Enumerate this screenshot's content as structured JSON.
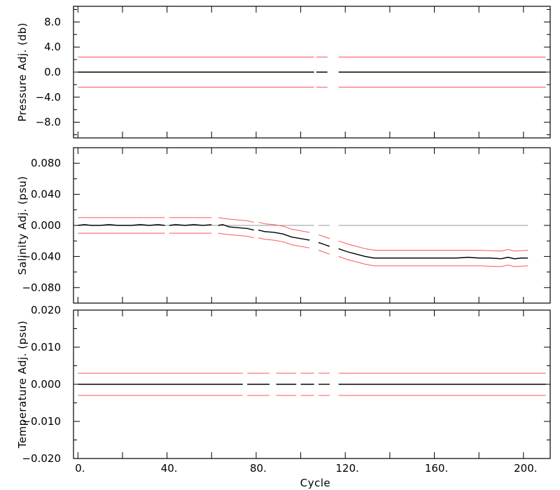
{
  "colors": {
    "data": "#000000",
    "error": "#ff5555",
    "zero": "#999999",
    "frame": "#000000"
  },
  "chart_data": [
    {
      "type": "line",
      "ylabel": "Pressure Adj. (db)",
      "ylim": [
        -10.5,
        10.5
      ],
      "yticks": [
        -8,
        -4,
        0,
        4,
        8
      ],
      "ytick_labels": [
        "−8.0",
        "−4.0",
        "0.0",
        "4.0",
        "8.0"
      ],
      "series": [
        {
          "role": "data",
          "segments": [
            [
              [
                0,
                0
              ],
              [
                106,
                0
              ]
            ],
            [
              [
                107,
                0
              ],
              [
                112,
                0
              ]
            ],
            [
              [
                117,
                0
              ],
              [
                210,
                0
              ]
            ]
          ]
        },
        {
          "role": "upper-error",
          "segments": [
            [
              [
                0,
                2.4
              ],
              [
                106,
                2.4
              ]
            ],
            [
              [
                107,
                2.4
              ],
              [
                112,
                2.4
              ]
            ],
            [
              [
                117,
                2.4
              ],
              [
                210,
                2.4
              ]
            ]
          ]
        },
        {
          "role": "lower-error",
          "segments": [
            [
              [
                0,
                -2.4
              ],
              [
                106,
                -2.4
              ]
            ],
            [
              [
                107,
                -2.4
              ],
              [
                112,
                -2.4
              ]
            ],
            [
              [
                117,
                -2.4
              ],
              [
                210,
                -2.4
              ]
            ]
          ]
        }
      ]
    },
    {
      "type": "line",
      "ylabel": "Salinity Adj. (psu)",
      "ylim": [
        -0.1,
        0.1
      ],
      "yticks": [
        -0.08,
        -0.04,
        0.0,
        0.04,
        0.08
      ],
      "ytick_labels": [
        "−0.080",
        "−0.040",
        "0.000",
        "0.040",
        "0.080"
      ],
      "series": [
        {
          "role": "zero-reference",
          "segments": [
            [
              [
                0,
                0
              ],
              [
                106,
                0
              ]
            ],
            [
              [
                108,
                0
              ],
              [
                113,
                0
              ]
            ],
            [
              [
                117,
                0
              ],
              [
                202,
                0
              ]
            ]
          ]
        },
        {
          "role": "data",
          "segments": [
            [
              [
                0,
                0
              ],
              [
                3,
                0.001
              ],
              [
                6,
                0
              ],
              [
                10,
                0
              ],
              [
                14,
                0.001
              ],
              [
                18,
                0
              ],
              [
                24,
                0
              ],
              [
                28,
                0.001
              ],
              [
                32,
                0
              ],
              [
                36,
                0.001
              ],
              [
                39,
                0
              ]
            ],
            [
              [
                41,
                0
              ],
              [
                44,
                0.001
              ],
              [
                48,
                0
              ],
              [
                52,
                0.001
              ],
              [
                56,
                0
              ],
              [
                60,
                0.001
              ]
            ],
            [
              [
                63,
                0
              ],
              [
                65,
                0.001
              ],
              [
                68,
                -0.002
              ],
              [
                72,
                -0.003
              ],
              [
                76,
                -0.004
              ],
              [
                79,
                -0.006
              ]
            ],
            [
              [
                81,
                -0.006
              ],
              [
                84,
                -0.008
              ],
              [
                88,
                -0.009
              ],
              [
                92,
                -0.011
              ],
              [
                96,
                -0.015
              ],
              [
                100,
                -0.017
              ],
              [
                104,
                -0.019
              ]
            ],
            [
              [
                108,
                -0.022
              ],
              [
                111,
                -0.025
              ],
              [
                113,
                -0.027
              ]
            ],
            [
              [
                117,
                -0.03
              ],
              [
                121,
                -0.034
              ],
              [
                125,
                -0.037
              ],
              [
                129,
                -0.04
              ],
              [
                133,
                -0.042
              ],
              [
                140,
                -0.042
              ],
              [
                150,
                -0.042
              ],
              [
                160,
                -0.042
              ],
              [
                170,
                -0.042
              ],
              [
                175,
                -0.041
              ],
              [
                180,
                -0.042
              ],
              [
                185,
                -0.042
              ],
              [
                190,
                -0.043
              ],
              [
                193,
                -0.041
              ],
              [
                196,
                -0.043
              ],
              [
                199,
                -0.042
              ],
              [
                202,
                -0.042
              ]
            ]
          ]
        },
        {
          "role": "upper-error",
          "segments": [
            [
              [
                0,
                0.01
              ],
              [
                39,
                0.01
              ]
            ],
            [
              [
                41,
                0.01
              ],
              [
                60,
                0.01
              ]
            ],
            [
              [
                63,
                0.01
              ],
              [
                68,
                0.008
              ],
              [
                72,
                0.007
              ],
              [
                76,
                0.006
              ],
              [
                79,
                0.004
              ]
            ],
            [
              [
                81,
                0.004
              ],
              [
                84,
                0.002
              ],
              [
                88,
                0.001
              ],
              [
                92,
                -0.001
              ],
              [
                96,
                -0.005
              ],
              [
                100,
                -0.007
              ],
              [
                104,
                -0.009
              ]
            ],
            [
              [
                108,
                -0.012
              ],
              [
                111,
                -0.015
              ],
              [
                113,
                -0.017
              ]
            ],
            [
              [
                117,
                -0.02
              ],
              [
                121,
                -0.024
              ],
              [
                125,
                -0.027
              ],
              [
                129,
                -0.03
              ],
              [
                133,
                -0.032
              ],
              [
                170,
                -0.032
              ],
              [
                180,
                -0.032
              ],
              [
                190,
                -0.033
              ],
              [
                193,
                -0.031
              ],
              [
                196,
                -0.033
              ],
              [
                202,
                -0.032
              ]
            ]
          ]
        },
        {
          "role": "lower-error",
          "segments": [
            [
              [
                0,
                -0.01
              ],
              [
                39,
                -0.01
              ]
            ],
            [
              [
                41,
                -0.01
              ],
              [
                60,
                -0.01
              ]
            ],
            [
              [
                63,
                -0.01
              ],
              [
                68,
                -0.012
              ],
              [
                72,
                -0.013
              ],
              [
                76,
                -0.014
              ],
              [
                79,
                -0.016
              ]
            ],
            [
              [
                81,
                -0.016
              ],
              [
                84,
                -0.018
              ],
              [
                88,
                -0.019
              ],
              [
                92,
                -0.021
              ],
              [
                96,
                -0.025
              ],
              [
                100,
                -0.027
              ],
              [
                104,
                -0.029
              ]
            ],
            [
              [
                108,
                -0.032
              ],
              [
                111,
                -0.035
              ],
              [
                113,
                -0.037
              ]
            ],
            [
              [
                117,
                -0.04
              ],
              [
                121,
                -0.044
              ],
              [
                125,
                -0.047
              ],
              [
                129,
                -0.05
              ],
              [
                133,
                -0.052
              ],
              [
                170,
                -0.052
              ],
              [
                180,
                -0.052
              ],
              [
                190,
                -0.053
              ],
              [
                193,
                -0.051
              ],
              [
                196,
                -0.053
              ],
              [
                202,
                -0.052
              ]
            ]
          ]
        }
      ]
    },
    {
      "type": "line",
      "ylabel": "Temperature Adj. (psu)",
      "xlabel": "Cycle",
      "xticks": [
        0,
        40,
        80,
        120,
        160,
        200
      ],
      "xtick_labels": [
        "0.",
        "40.",
        "80.",
        "120.",
        "160.",
        "200."
      ],
      "ylim": [
        -0.02,
        0.02
      ],
      "yticks": [
        -0.02,
        -0.01,
        0.0,
        0.01,
        0.02
      ],
      "ytick_labels": [
        "−0.020",
        "−0.010",
        "0.000",
        "0.010",
        "0.020"
      ],
      "series": [
        {
          "role": "data",
          "segments": [
            [
              [
                0,
                0
              ],
              [
                74,
                0
              ]
            ],
            [
              [
                76,
                0
              ],
              [
                86,
                0
              ]
            ],
            [
              [
                89,
                0
              ],
              [
                98,
                0
              ]
            ],
            [
              [
                100,
                0
              ],
              [
                106,
                0
              ]
            ],
            [
              [
                108,
                0
              ],
              [
                113,
                0
              ]
            ],
            [
              [
                117,
                0
              ],
              [
                210,
                0
              ]
            ]
          ]
        },
        {
          "role": "upper-error",
          "segments": [
            [
              [
                0,
                0.003
              ],
              [
                74,
                0.003
              ]
            ],
            [
              [
                76,
                0.003
              ],
              [
                86,
                0.003
              ]
            ],
            [
              [
                89,
                0.003
              ],
              [
                98,
                0.003
              ]
            ],
            [
              [
                100,
                0.003
              ],
              [
                106,
                0.003
              ]
            ],
            [
              [
                108,
                0.003
              ],
              [
                113,
                0.003
              ]
            ],
            [
              [
                117,
                0.003
              ],
              [
                210,
                0.003
              ]
            ]
          ]
        },
        {
          "role": "lower-error",
          "segments": [
            [
              [
                0,
                -0.003
              ],
              [
                74,
                -0.003
              ]
            ],
            [
              [
                76,
                -0.003
              ],
              [
                86,
                -0.003
              ]
            ],
            [
              [
                89,
                -0.003
              ],
              [
                98,
                -0.003
              ]
            ],
            [
              [
                100,
                -0.003
              ],
              [
                106,
                -0.003
              ]
            ],
            [
              [
                108,
                -0.003
              ],
              [
                113,
                -0.003
              ]
            ],
            [
              [
                117,
                -0.003
              ],
              [
                210,
                -0.003
              ]
            ]
          ]
        }
      ]
    }
  ],
  "shared_x": {
    "xlim": [
      -2,
      212
    ],
    "xticks": [
      0,
      20,
      40,
      60,
      80,
      100,
      120,
      140,
      160,
      180,
      200
    ]
  }
}
